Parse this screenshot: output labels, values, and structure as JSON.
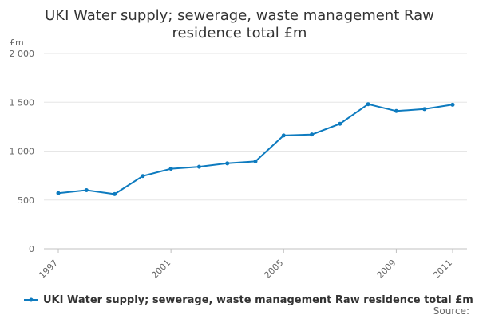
{
  "chart_data": {
    "type": "line",
    "title_lines": [
      "UKI Water supply; sewerage, waste management Raw",
      "residence total £m"
    ],
    "ylabel": "£m",
    "ylim": [
      0,
      2000
    ],
    "yticks": [
      0,
      500,
      1000,
      1500,
      2000
    ],
    "ytick_labels": [
      "0",
      "500",
      "1 000",
      "1 500",
      "2 000"
    ],
    "xlim": [
      1997,
      2011
    ],
    "xticks": [
      1997,
      2001,
      2005,
      2009,
      2011
    ],
    "xtick_labels": [
      "1997",
      "2001",
      "2005",
      "2009",
      "2011"
    ],
    "color": "#0e7bbf",
    "series": [
      {
        "name": "UKI Water supply; sewerage, waste management Raw residence total £m",
        "x": [
          1997,
          1998,
          1999,
          2000,
          2001,
          2002,
          2003,
          2004,
          2005,
          2006,
          2007,
          2008,
          2009,
          2010,
          2011
        ],
        "values": [
          570,
          600,
          560,
          745,
          820,
          840,
          875,
          895,
          1160,
          1170,
          1280,
          1480,
          1410,
          1430,
          1475
        ]
      }
    ],
    "legend_position": "bottom-center",
    "source_label": "Source:"
  }
}
